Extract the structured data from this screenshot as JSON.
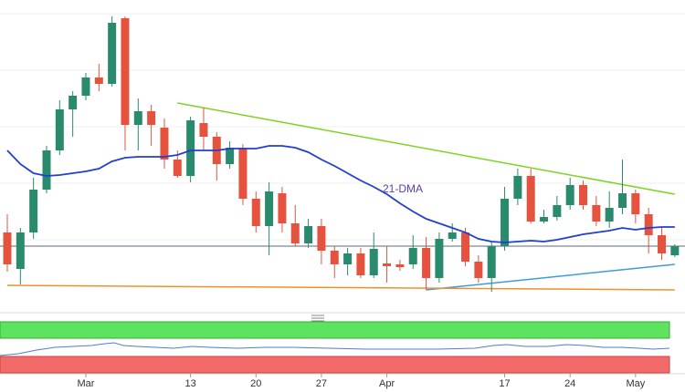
{
  "chart_data": {
    "type": "candlestick",
    "categories": [
      null,
      null,
      null,
      null,
      null,
      null,
      "Mar",
      null,
      null,
      null,
      null,
      null,
      null,
      null,
      "13",
      null,
      null,
      null,
      null,
      "20",
      null,
      null,
      null,
      null,
      "27",
      null,
      null,
      null,
      null,
      "Apr",
      null,
      null,
      null,
      null,
      null,
      null,
      null,
      null,
      "17",
      null,
      null,
      null,
      null,
      "24",
      null,
      null,
      null,
      null,
      "May",
      null,
      null,
      null
    ],
    "open": [
      85,
      45,
      85,
      132,
      175,
      220,
      235,
      255,
      248,
      320,
      203,
      218,
      200,
      165,
      147,
      205,
      190,
      160,
      178,
      122,
      92,
      128,
      95,
      73,
      92,
      65,
      50,
      62,
      38,
      51,
      50,
      50,
      68,
      35,
      78,
      85,
      53,
      35,
      70,
      122,
      147,
      97,
      102,
      115,
      137,
      115,
      97,
      112,
      128,
      105,
      82,
      60
    ],
    "high": [
      105,
      90,
      145,
      180,
      230,
      240,
      260,
      270,
      322,
      322,
      232,
      225,
      210,
      175,
      212,
      222,
      195,
      185,
      182,
      130,
      140,
      135,
      115,
      100,
      100,
      70,
      68,
      68,
      85,
      70,
      55,
      82,
      80,
      85,
      95,
      90,
      60,
      75,
      135,
      155,
      155,
      110,
      125,
      145,
      142,
      125,
      130,
      165,
      132,
      112,
      90,
      72
    ],
    "low": [
      42,
      28,
      78,
      128,
      170,
      190,
      230,
      240,
      245,
      175,
      175,
      180,
      155,
      145,
      140,
      175,
      142,
      155,
      115,
      85,
      60,
      85,
      70,
      68,
      50,
      35,
      38,
      35,
      35,
      30,
      43,
      45,
      22,
      30,
      75,
      48,
      30,
      20,
      65,
      115,
      95,
      95,
      98,
      110,
      110,
      92,
      90,
      105,
      95,
      62,
      55,
      58
    ],
    "close": [
      50,
      85,
      132,
      175,
      220,
      235,
      255,
      248,
      315,
      203,
      218,
      203,
      165,
      147,
      208,
      190,
      160,
      178,
      122,
      92,
      130,
      95,
      73,
      92,
      65,
      50,
      62,
      38,
      67,
      48,
      47,
      68,
      35,
      78,
      85,
      53,
      35,
      70,
      122,
      147,
      97,
      102,
      115,
      137,
      115,
      97,
      112,
      128,
      105,
      82,
      62,
      70
    ],
    "up_color": "#2a8a6e",
    "down_color": "#e5533f",
    "ylim": [
      0,
      340
    ],
    "series": [
      {
        "name": "21-DMA",
        "color": "#1f3fd1",
        "values": [
          175,
          160,
          150,
          147,
          148,
          150,
          152,
          155,
          163,
          167,
          168,
          168,
          168,
          170,
          175,
          175,
          175,
          177,
          177,
          177,
          180,
          180,
          178,
          173,
          165,
          158,
          150,
          142,
          135,
          127,
          117,
          108,
          100,
          95,
          90,
          85,
          78,
          75,
          74,
          75,
          76,
          75,
          77,
          80,
          83,
          85,
          87,
          90,
          88,
          90,
          91,
          91
        ]
      }
    ],
    "trendlines": [
      {
        "color": "#7ed321",
        "points": [
          [
            13,
            227
          ],
          [
            51,
            127
          ]
        ]
      },
      {
        "color": "#3d9be0",
        "points": [
          [
            32,
            22
          ],
          [
            51,
            50
          ]
        ]
      },
      {
        "color": "#f0902a",
        "points": [
          [
            0,
            27
          ],
          [
            51,
            22
          ]
        ]
      }
    ],
    "hline": {
      "value": 70,
      "color": "#5a6b7b"
    }
  }
}
